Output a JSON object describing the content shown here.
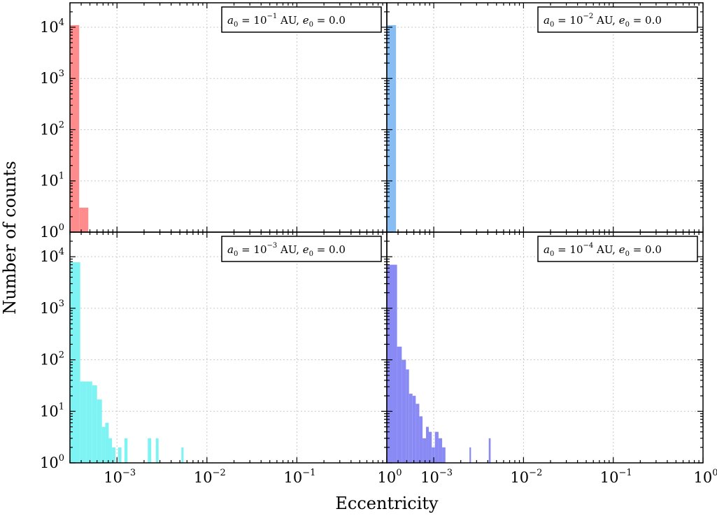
{
  "figure": {
    "xlabel": "Eccentricity",
    "ylabel": "Number of counts",
    "xscale": "log",
    "yscale": "log",
    "xlim": [
      0.0003,
      1
    ],
    "ylim": [
      1,
      30000
    ],
    "grid": true,
    "legend_position": "top-right"
  },
  "x_ticks": [
    {
      "base": "10",
      "exp": "−3",
      "value": 0.001
    },
    {
      "base": "10",
      "exp": "−2",
      "value": 0.01
    },
    {
      "base": "10",
      "exp": "−1",
      "value": 0.1
    },
    {
      "base": "10",
      "exp": "0",
      "value": 1
    }
  ],
  "y_ticks": [
    {
      "base": "10",
      "exp": "0",
      "value": 1
    },
    {
      "base": "10",
      "exp": "1",
      "value": 10
    },
    {
      "base": "10",
      "exp": "2",
      "value": 100
    },
    {
      "base": "10",
      "exp": "3",
      "value": 1000
    },
    {
      "base": "10",
      "exp": "4",
      "value": 10000
    }
  ],
  "chart_data": [
    {
      "type": "bar",
      "name": "top-left",
      "label": {
        "a_exp": "−1",
        "unit": "AU",
        "e0": "0.0"
      },
      "color": "#ff8c8c",
      "bins": [
        {
          "x0": 0.0003,
          "x1": 0.00038,
          "count": 11000
        },
        {
          "x0": 0.00038,
          "x1": 0.00048,
          "count": 3
        }
      ]
    },
    {
      "type": "bar",
      "name": "top-right",
      "label": {
        "a_exp": "−2",
        "unit": "AU",
        "e0": "0.0"
      },
      "color": "#87bdf2",
      "bins": [
        {
          "x0": 0.0003,
          "x1": 0.00038,
          "count": 11000
        }
      ]
    },
    {
      "type": "bar",
      "name": "bottom-left",
      "label": {
        "a_exp": "−3",
        "unit": "AU",
        "e0": "0.0"
      },
      "color": "#7ef3f3",
      "bins": [
        {
          "x0": 0.0003,
          "x1": 0.00039,
          "count": 7800
        },
        {
          "x0": 0.00039,
          "x1": 0.00046,
          "count": 38
        },
        {
          "x0": 0.00046,
          "x1": 0.00053,
          "count": 38
        },
        {
          "x0": 0.00053,
          "x1": 0.0006,
          "count": 32
        },
        {
          "x0": 0.0006,
          "x1": 0.00068,
          "count": 17
        },
        {
          "x0": 0.00068,
          "x1": 0.00074,
          "count": 5
        },
        {
          "x0": 0.00074,
          "x1": 0.00081,
          "count": 6
        },
        {
          "x0": 0.00081,
          "x1": 0.00088,
          "count": 3
        },
        {
          "x0": 0.00088,
          "x1": 0.00096,
          "count": 2
        },
        {
          "x0": 0.00103,
          "x1": 0.00112,
          "count": 2
        },
        {
          "x0": 0.00121,
          "x1": 0.00131,
          "count": 3
        },
        {
          "x0": 0.0022,
          "x1": 0.0024,
          "count": 3
        },
        {
          "x0": 0.0027,
          "x1": 0.0029,
          "count": 3
        },
        {
          "x0": 0.0052,
          "x1": 0.0055,
          "count": 2
        }
      ]
    },
    {
      "type": "bar",
      "name": "bottom-right",
      "label": {
        "a_exp": "−4",
        "unit": "AU",
        "e0": "0.0"
      },
      "color": "#8a8af5",
      "bins": [
        {
          "x0": 0.0003,
          "x1": 0.00039,
          "count": 7000
        },
        {
          "x0": 0.00039,
          "x1": 0.00044,
          "count": 180
        },
        {
          "x0": 0.00044,
          "x1": 0.00049,
          "count": 100
        },
        {
          "x0": 0.00049,
          "x1": 0.00053,
          "count": 65
        },
        {
          "x0": 0.00053,
          "x1": 0.00058,
          "count": 22
        },
        {
          "x0": 0.00058,
          "x1": 0.00063,
          "count": 20
        },
        {
          "x0": 0.00063,
          "x1": 0.00069,
          "count": 14
        },
        {
          "x0": 0.00069,
          "x1": 0.00075,
          "count": 8
        },
        {
          "x0": 0.00075,
          "x1": 0.00082,
          "count": 3
        },
        {
          "x0": 0.00082,
          "x1": 0.00088,
          "count": 5
        },
        {
          "x0": 0.00088,
          "x1": 0.00095,
          "count": 4
        },
        {
          "x0": 0.00095,
          "x1": 0.00103,
          "count": 2
        },
        {
          "x0": 0.00103,
          "x1": 0.00113,
          "count": 4
        },
        {
          "x0": 0.00113,
          "x1": 0.00124,
          "count": 3
        },
        {
          "x0": 0.00124,
          "x1": 0.00135,
          "count": 2
        },
        {
          "x0": 0.0025,
          "x1": 0.0026,
          "count": 2
        },
        {
          "x0": 0.0041,
          "x1": 0.0043,
          "count": 3
        }
      ]
    }
  ]
}
